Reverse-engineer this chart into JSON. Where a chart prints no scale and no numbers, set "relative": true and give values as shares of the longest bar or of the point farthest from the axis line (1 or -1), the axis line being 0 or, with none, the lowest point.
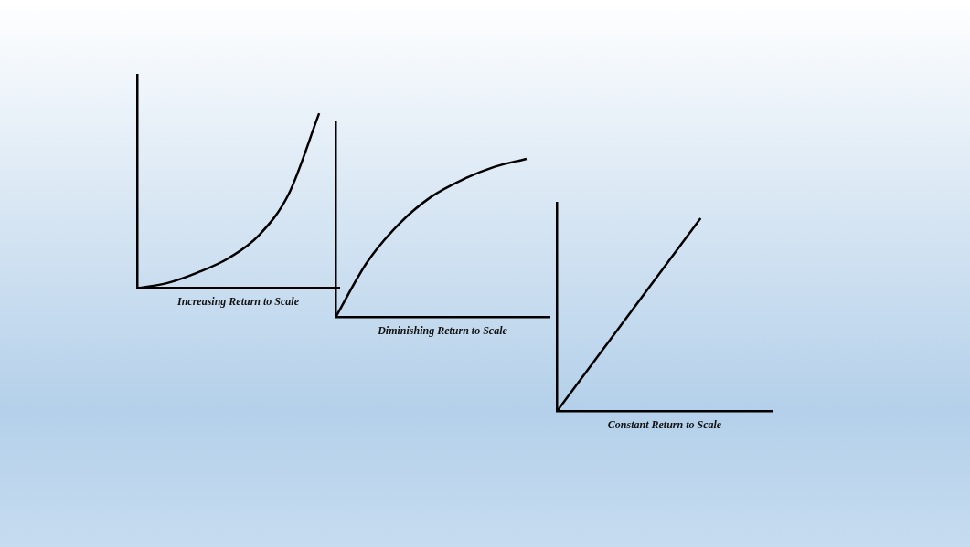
{
  "chart_data": [
    {
      "type": "line",
      "title": "Increasing Return to Scale",
      "relative": true,
      "categories": [
        null,
        null,
        null,
        null,
        null,
        null,
        null
      ],
      "series": [
        {
          "color": "#000000",
          "values": [
            0,
            0.03,
            0.09,
            0.17,
            0.3,
            0.54,
            1
          ]
        }
      ],
      "marker": "none",
      "grid": false,
      "legend": false
    },
    {
      "type": "line",
      "title": "Diminishing Return to Scale",
      "relative": true,
      "categories": [
        null,
        null,
        null,
        null,
        null,
        null,
        null
      ],
      "series": [
        {
          "color": "#000000",
          "values": [
            0,
            0.35,
            0.59,
            0.76,
            0.87,
            0.95,
            1
          ]
        }
      ],
      "marker": "none",
      "grid": false,
      "legend": false
    },
    {
      "type": "line",
      "title": "Constant Return to Scale",
      "relative": true,
      "categories": [
        null,
        null
      ],
      "series": [
        {
          "color": "#000000",
          "values": [
            0,
            1
          ]
        }
      ],
      "marker": "none",
      "grid": false,
      "legend": false
    }
  ]
}
